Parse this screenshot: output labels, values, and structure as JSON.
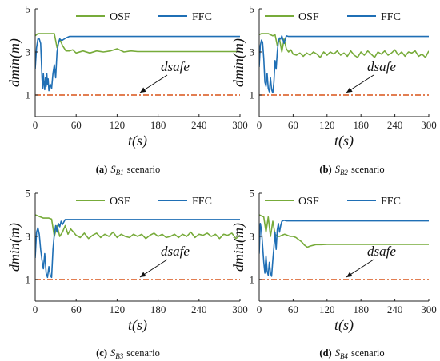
{
  "colors": {
    "osf": "#77ab3a",
    "ffc": "#1f6fb5",
    "dsafe": "#d95319",
    "axis": "#222222"
  },
  "chart_data": [
    {
      "type": "line",
      "panel_letter": "(a)",
      "caption_text": "S",
      "caption_sub": "B1",
      "caption_suffix": "scenario",
      "xlabel": "t(s)",
      "ylabel": "dmin(m)",
      "xlim": [
        0,
        300
      ],
      "ylim": [
        0,
        5
      ],
      "xticks": [
        0,
        60,
        120,
        180,
        240,
        300
      ],
      "yticks": [
        1,
        3,
        5
      ],
      "legend_position": "top-right",
      "grid": false,
      "annotation": {
        "text": "dsafe",
        "target": [
          150,
          1
        ]
      },
      "series": [
        {
          "name": "OSF",
          "color_key": "osf",
          "x": [
            0,
            4,
            8,
            12,
            16,
            20,
            24,
            28,
            32,
            36,
            40,
            45,
            50,
            55,
            60,
            70,
            80,
            90,
            100,
            110,
            120,
            130,
            140,
            150,
            160,
            180,
            200,
            220,
            240,
            260,
            280,
            300
          ],
          "y": [
            3.75,
            3.85,
            3.85,
            3.85,
            3.85,
            3.85,
            3.85,
            3.85,
            3.2,
            3.6,
            3.3,
            3.05,
            3.05,
            3.1,
            2.95,
            3.05,
            2.95,
            3.05,
            3.0,
            3.05,
            3.15,
            3.0,
            3.05,
            3.02,
            3.02,
            3.02,
            3.02,
            3.02,
            3.02,
            3.02,
            3.02,
            3.02
          ]
        },
        {
          "name": "FFC",
          "color_key": "ffc",
          "x": [
            0,
            2,
            4,
            6,
            8,
            9,
            10,
            11,
            12,
            13,
            14,
            15,
            16,
            17,
            18,
            19,
            20,
            22,
            24,
            26,
            28,
            30,
            32,
            34,
            36,
            38,
            40,
            45,
            50,
            60,
            100,
            150,
            200,
            250,
            300
          ],
          "y": [
            2.2,
            3.2,
            3.6,
            3.6,
            3.4,
            2.6,
            1.8,
            1.3,
            2.0,
            1.5,
            1.25,
            1.8,
            1.4,
            2.0,
            1.5,
            1.75,
            1.2,
            1.5,
            1.3,
            2.0,
            2.4,
            1.8,
            3.0,
            3.4,
            3.6,
            3.55,
            3.55,
            3.65,
            3.72,
            3.72,
            3.72,
            3.72,
            3.72,
            3.72,
            3.72
          ]
        },
        {
          "name": "dsafe",
          "color_key": "dsafe",
          "dashed": true,
          "x": [
            0,
            300
          ],
          "y": [
            1,
            1
          ]
        }
      ]
    },
    {
      "type": "line",
      "panel_letter": "(b)",
      "caption_text": "S",
      "caption_sub": "B2",
      "caption_suffix": "scenario",
      "xlabel": "t(s)",
      "ylabel": "dmin(m)",
      "xlim": [
        0,
        300
      ],
      "ylim": [
        0,
        5
      ],
      "xticks": [
        0,
        60,
        120,
        180,
        240,
        300
      ],
      "yticks": [
        1,
        3,
        5
      ],
      "legend_position": "top-right",
      "grid": false,
      "annotation": {
        "text": "dsafe",
        "target": [
          150,
          1
        ]
      },
      "series": [
        {
          "name": "OSF",
          "color_key": "osf",
          "x": [
            0,
            4,
            8,
            12,
            16,
            20,
            24,
            28,
            32,
            36,
            40,
            44,
            48,
            52,
            56,
            60,
            66,
            72,
            78,
            84,
            90,
            96,
            102,
            108,
            114,
            120,
            126,
            132,
            138,
            144,
            150,
            156,
            162,
            168,
            174,
            180,
            186,
            192,
            198,
            204,
            210,
            216,
            222,
            228,
            234,
            240,
            246,
            252,
            258,
            264,
            270,
            276,
            282,
            288,
            294,
            300
          ],
          "y": [
            3.8,
            3.85,
            3.85,
            3.85,
            3.85,
            3.8,
            3.75,
            3.8,
            3.3,
            3.6,
            3.0,
            3.6,
            3.15,
            3.0,
            3.1,
            2.9,
            2.85,
            2.95,
            2.8,
            2.95,
            2.85,
            3.0,
            2.9,
            2.75,
            3.0,
            2.85,
            3.0,
            2.9,
            3.05,
            2.85,
            2.95,
            2.8,
            3.05,
            2.85,
            2.75,
            3.0,
            2.85,
            3.05,
            2.9,
            2.75,
            3.0,
            2.9,
            3.05,
            2.85,
            2.95,
            3.1,
            2.85,
            3.0,
            2.8,
            3.0,
            2.95,
            3.05,
            2.8,
            2.9,
            2.75,
            3.05
          ]
        },
        {
          "name": "FFC",
          "color_key": "ffc",
          "x": [
            0,
            2,
            4,
            6,
            8,
            10,
            12,
            14,
            16,
            18,
            20,
            22,
            24,
            26,
            28,
            30,
            32,
            34,
            36,
            38,
            40,
            44,
            48,
            52,
            60,
            100,
            150,
            200,
            250,
            300
          ],
          "y": [
            2.3,
            3.3,
            3.55,
            3.45,
            2.7,
            1.6,
            1.4,
            2.0,
            1.3,
            1.15,
            1.8,
            1.25,
            1.1,
            1.6,
            2.6,
            2.2,
            3.0,
            3.5,
            3.65,
            3.6,
            3.75,
            3.4,
            3.75,
            3.72,
            3.72,
            3.72,
            3.72,
            3.72,
            3.72,
            3.72
          ]
        },
        {
          "name": "dsafe",
          "color_key": "dsafe",
          "dashed": true,
          "x": [
            0,
            300
          ],
          "y": [
            1,
            1
          ]
        }
      ]
    },
    {
      "type": "line",
      "panel_letter": "(c)",
      "caption_text": "S",
      "caption_sub": "B3",
      "caption_suffix": "scenario",
      "xlabel": "t(s)",
      "ylabel": "dmin(m)",
      "xlim": [
        0,
        300
      ],
      "ylim": [
        0,
        5
      ],
      "xticks": [
        0,
        60,
        120,
        180,
        240,
        300
      ],
      "yticks": [
        1,
        3,
        5
      ],
      "legend_position": "top-right",
      "grid": false,
      "annotation": {
        "text": "dsafe",
        "target": [
          150,
          1
        ]
      },
      "series": [
        {
          "name": "OSF",
          "color_key": "osf",
          "x": [
            0,
            4,
            8,
            12,
            16,
            20,
            24,
            28,
            32,
            36,
            40,
            44,
            48,
            52,
            56,
            60,
            66,
            72,
            78,
            84,
            90,
            96,
            102,
            108,
            114,
            120,
            126,
            132,
            138,
            144,
            150,
            156,
            162,
            168,
            174,
            180,
            186,
            192,
            198,
            204,
            210,
            216,
            222,
            228,
            234,
            240,
            246,
            252,
            258,
            264,
            270,
            276,
            282,
            288,
            294,
            300
          ],
          "y": [
            4.0,
            3.95,
            3.9,
            3.85,
            3.85,
            3.85,
            3.8,
            3.0,
            3.5,
            3.0,
            3.2,
            3.5,
            3.1,
            3.35,
            3.2,
            3.05,
            2.95,
            3.15,
            2.9,
            3.05,
            3.15,
            2.95,
            3.1,
            3.0,
            3.2,
            2.95,
            3.1,
            3.0,
            2.95,
            3.1,
            3.0,
            3.1,
            2.9,
            3.05,
            3.15,
            3.0,
            3.1,
            2.95,
            3.0,
            3.1,
            2.95,
            3.1,
            3.0,
            3.2,
            2.95,
            3.1,
            3.05,
            3.15,
            3.0,
            3.1,
            2.9,
            3.1,
            3.05,
            3.15,
            2.9,
            3.05
          ]
        },
        {
          "name": "FFC",
          "color_key": "ffc",
          "x": [
            0,
            2,
            4,
            6,
            8,
            10,
            12,
            14,
            16,
            18,
            20,
            22,
            24,
            26,
            28,
            30,
            32,
            34,
            36,
            38,
            40,
            44,
            48,
            52,
            60,
            100,
            150,
            200,
            250,
            300
          ],
          "y": [
            2.0,
            3.2,
            3.4,
            3.1,
            2.4,
            1.9,
            1.5,
            2.2,
            1.3,
            1.1,
            1.6,
            1.2,
            1.1,
            2.4,
            3.1,
            3.5,
            3.2,
            3.6,
            3.45,
            3.7,
            3.55,
            3.78,
            3.78,
            3.78,
            3.78,
            3.78,
            3.78,
            3.78,
            3.78,
            3.78
          ]
        },
        {
          "name": "dsafe",
          "color_key": "dsafe",
          "dashed": true,
          "x": [
            0,
            300
          ],
          "y": [
            1,
            1
          ]
        }
      ]
    },
    {
      "type": "line",
      "panel_letter": "(d)",
      "caption_text": "S",
      "caption_sub": "B4",
      "caption_suffix": "scenario",
      "xlabel": "t(s)",
      "ylabel": "dmin(m)",
      "xlim": [
        0,
        300
      ],
      "ylim": [
        0,
        5
      ],
      "xticks": [
        0,
        60,
        120,
        180,
        240,
        300
      ],
      "yticks": [
        1,
        3,
        5
      ],
      "legend_position": "top-right",
      "grid": false,
      "annotation": {
        "text": "dsafe",
        "target": [
          150,
          1
        ]
      },
      "series": [
        {
          "name": "OSF",
          "color_key": "osf",
          "x": [
            0,
            4,
            8,
            12,
            16,
            20,
            24,
            28,
            32,
            36,
            40,
            45,
            50,
            55,
            60,
            65,
            70,
            75,
            80,
            85,
            90,
            100,
            110,
            120,
            150,
            200,
            250,
            300
          ],
          "y": [
            4.0,
            3.95,
            3.9,
            3.2,
            3.9,
            3.0,
            3.7,
            3.1,
            3.0,
            3.0,
            3.05,
            3.1,
            3.05,
            3.0,
            3.0,
            2.95,
            2.85,
            2.75,
            2.6,
            2.5,
            2.55,
            2.62,
            2.62,
            2.63,
            2.63,
            2.63,
            2.63,
            2.63
          ]
        },
        {
          "name": "FFC",
          "color_key": "ffc",
          "x": [
            0,
            2,
            4,
            6,
            8,
            10,
            12,
            14,
            16,
            18,
            20,
            22,
            24,
            26,
            28,
            30,
            32,
            34,
            36,
            38,
            40,
            44,
            48,
            52,
            60,
            100,
            150,
            200,
            250,
            300
          ],
          "y": [
            2.2,
            3.6,
            3.3,
            2.6,
            1.8,
            1.3,
            2.1,
            1.4,
            1.2,
            1.8,
            1.3,
            1.15,
            1.9,
            2.5,
            3.2,
            2.4,
            3.3,
            3.6,
            3.2,
            3.5,
            3.7,
            3.75,
            3.72,
            3.72,
            3.72,
            3.72,
            3.72,
            3.72,
            3.72,
            3.72
          ]
        },
        {
          "name": "dsafe",
          "color_key": "dsafe",
          "dashed": true,
          "x": [
            0,
            300
          ],
          "y": [
            1,
            1
          ]
        }
      ]
    }
  ]
}
